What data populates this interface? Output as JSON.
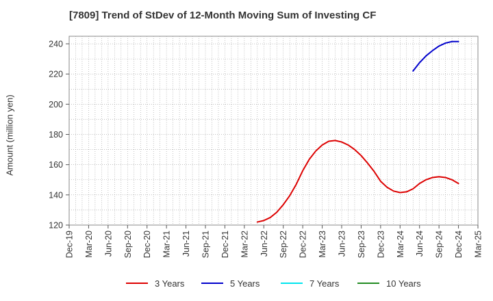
{
  "chart_data": {
    "type": "line",
    "title": "[7809]  Trend of StDev of 12-Month Moving Sum of Investing CF",
    "xlabel": "",
    "ylabel": "Amount (million yen)",
    "ylim": [
      120,
      245
    ],
    "yticks": [
      120,
      140,
      160,
      180,
      200,
      220,
      240
    ],
    "grid": true,
    "legend_position": "bottom",
    "x_tick_labels": [
      "Dec-19",
      "Mar-20",
      "Jun-20",
      "Sep-20",
      "Dec-20",
      "Mar-21",
      "Jun-21",
      "Sep-21",
      "Dec-21",
      "Mar-22",
      "Jun-22",
      "Sep-22",
      "Dec-22",
      "Mar-23",
      "Jun-23",
      "Sep-23",
      "Dec-23",
      "Mar-24",
      "Jun-24",
      "Sep-24",
      "Dec-24",
      "Mar-25"
    ],
    "series": [
      {
        "name": "3 Years",
        "color": "#dd0000",
        "points": [
          [
            "May-22",
            122.0
          ],
          [
            "Jun-22",
            123.0
          ],
          [
            "Jul-22",
            125.0
          ],
          [
            "Aug-22",
            128.5
          ],
          [
            "Sep-22",
            133.5
          ],
          [
            "Oct-22",
            139.5
          ],
          [
            "Nov-22",
            147.0
          ],
          [
            "Dec-22",
            156.0
          ],
          [
            "Jan-23",
            163.5
          ],
          [
            "Feb-23",
            169.0
          ],
          [
            "Mar-23",
            173.0
          ],
          [
            "Apr-23",
            175.5
          ],
          [
            "May-23",
            176.0
          ],
          [
            "Jun-23",
            175.0
          ],
          [
            "Jul-23",
            173.0
          ],
          [
            "Aug-23",
            170.0
          ],
          [
            "Sep-23",
            166.0
          ],
          [
            "Oct-23",
            161.0
          ],
          [
            "Nov-23",
            155.5
          ],
          [
            "Dec-23",
            149.0
          ],
          [
            "Jan-24",
            145.0
          ],
          [
            "Feb-24",
            142.5
          ],
          [
            "Mar-24",
            141.5
          ],
          [
            "Apr-24",
            142.0
          ],
          [
            "May-24",
            144.0
          ],
          [
            "Jun-24",
            147.5
          ],
          [
            "Jul-24",
            150.0
          ],
          [
            "Aug-24",
            151.5
          ],
          [
            "Sep-24",
            152.0
          ],
          [
            "Oct-24",
            151.5
          ],
          [
            "Nov-24",
            150.0
          ],
          [
            "Dec-24",
            147.5
          ]
        ]
      },
      {
        "name": "5 Years",
        "color": "#0000cc",
        "points": [
          [
            "May-24",
            222.0
          ],
          [
            "Jun-24",
            227.5
          ],
          [
            "Jul-24",
            232.0
          ],
          [
            "Aug-24",
            235.5
          ],
          [
            "Sep-24",
            238.5
          ],
          [
            "Oct-24",
            240.5
          ],
          [
            "Nov-24",
            241.5
          ],
          [
            "Dec-24",
            241.5
          ]
        ]
      },
      {
        "name": "7 Years",
        "color": "#00e5ee",
        "points": []
      },
      {
        "name": "10 Years",
        "color": "#228b22",
        "points": []
      }
    ]
  }
}
